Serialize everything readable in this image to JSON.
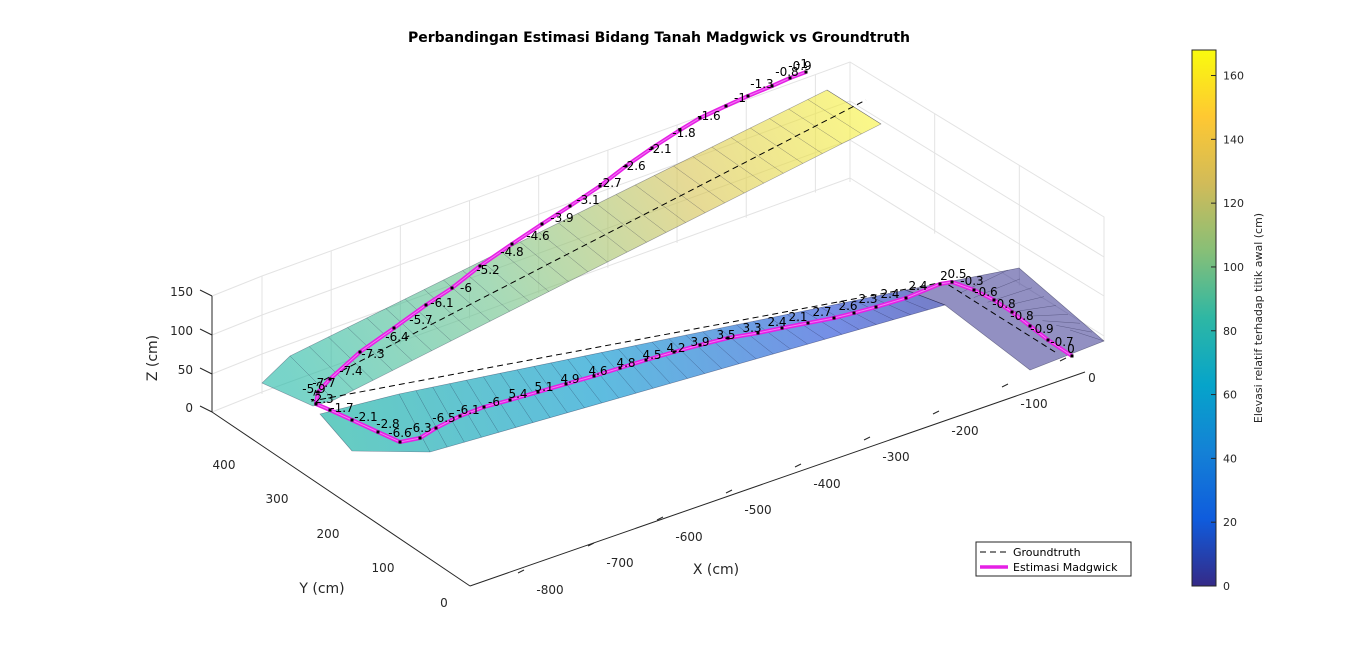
{
  "chart_data": {
    "type": "3d-surface-line",
    "title": "Perbandingan Estimasi Bidang Tanah Madgwick vs Groundtruth",
    "xlabel": "X (cm)",
    "ylabel": "Y (cm)",
    "zlabel": "Z (cm)",
    "x_ticks": [
      "-800",
      "-700",
      "-600",
      "-500",
      "-400",
      "-300",
      "-200",
      "-100",
      "0"
    ],
    "y_ticks": [
      "0",
      "100",
      "200",
      "300",
      "400"
    ],
    "z_ticks": [
      "0",
      "50",
      "100",
      "150"
    ],
    "colorbar": {
      "label": "Elevasi relatif terhadap titik awal (cm)",
      "ticks": [
        "0",
        "20",
        "40",
        "60",
        "80",
        "100",
        "120",
        "140",
        "160"
      ],
      "range": [
        0,
        168
      ],
      "colormap": "parula"
    },
    "legend": {
      "position": "bottom-right",
      "items": [
        {
          "label": "Groundtruth",
          "style": "dashed",
          "color": "#000000"
        },
        {
          "label": "Estimasi Madgwick",
          "style": "solid",
          "color": "#e520e5"
        }
      ]
    },
    "segment_labels": {
      "leg1": [
        "-0.7",
        "0",
        "0.9",
        "0.8",
        "0.8",
        "0.6",
        "0.3",
        "0.5"
      ],
      "leg2": [
        "2",
        "2.4",
        "2.4",
        "2.3",
        "2.6",
        "2.7",
        "2.1",
        "2.4",
        "3.3",
        "3.5",
        "3.9",
        "4.2",
        "4.5",
        "4.8",
        "4.6",
        "4.9",
        "5.1",
        "5.4",
        "6",
        "6.1",
        "6.5",
        "6.3",
        "6.6"
      ],
      "leg3": [
        "2.8",
        "2.1",
        "1.7",
        "2.3",
        "5.9",
        "7.7",
        "7.4",
        "7.3",
        "6.4",
        "5.7",
        "6.1",
        "6",
        "5.2",
        "4.8",
        "4.6",
        "3.9",
        "3.1",
        "2.7",
        "2.6",
        "2.1",
        "1.8",
        "1.6",
        "1",
        "1.3",
        "0.8",
        "0.9",
        "1"
      ],
      "leg3_signs": [
        "-",
        "-",
        "-",
        "-",
        "-",
        "-",
        "-",
        "-",
        "-",
        "-",
        "-",
        "-",
        "-",
        "-",
        "-",
        "-",
        "-",
        "-",
        "-",
        "-",
        "-",
        "-",
        "-",
        "-",
        "-",
        "-",
        "-"
      ],
      "leg1_signs": [
        "",
        "",
        "-",
        "-",
        "-",
        "-",
        "-",
        ""
      ],
      "leg2_signs": [
        "",
        "",
        "",
        "",
        "",
        "",
        "",
        "",
        "",
        "",
        "",
        "",
        "",
        "",
        "",
        "",
        "",
        "",
        "-",
        "-",
        "-",
        "-",
        "-"
      ]
    }
  }
}
